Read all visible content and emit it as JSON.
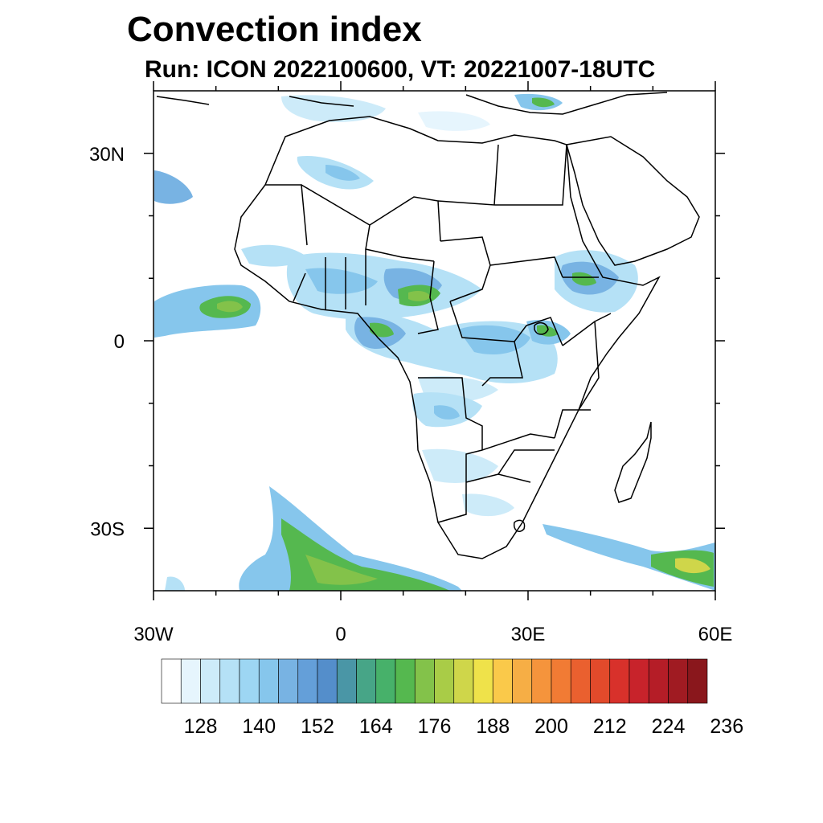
{
  "header": {
    "title": "Convection index",
    "subtitle": "Run: ICON 2022100600,  VT: 20221007-18UTC"
  },
  "map": {
    "lon_range": [
      -30,
      60
    ],
    "lat_range": [
      -40,
      40
    ],
    "lon_ticks": [
      {
        "value": -30,
        "label": "30W"
      },
      {
        "value": 0,
        "label": "0"
      },
      {
        "value": 30,
        "label": "30E"
      },
      {
        "value": 60,
        "label": "60E"
      }
    ],
    "lat_ticks": [
      {
        "value": 30,
        "label": "30N"
      },
      {
        "value": 0,
        "label": "0"
      },
      {
        "value": -30,
        "label": "30S"
      }
    ],
    "minor_lon_ticks": [
      -20,
      -10,
      10,
      20,
      40,
      50
    ],
    "minor_lat_ticks": [
      20,
      10,
      -10,
      -20
    ]
  },
  "colorbar": {
    "colors": [
      "#ffffff",
      "#e6f5fd",
      "#cdebf9",
      "#b5e1f6",
      "#9dd6f3",
      "#86c6ec",
      "#78b3e3",
      "#649fd9",
      "#548ecb",
      "#4a96a6",
      "#47a587",
      "#47b16a",
      "#55b84f",
      "#83c24a",
      "#a9cc47",
      "#cfd64a",
      "#efe24a",
      "#fac94a",
      "#f6ae45",
      "#f5943c",
      "#f17b34",
      "#ea602f",
      "#e24a2b",
      "#d8312b",
      "#c8232b",
      "#b51d27",
      "#a01b22",
      "#8a171c"
    ],
    "labels": [
      "128",
      "140",
      "152",
      "164",
      "176",
      "188",
      "200",
      "212",
      "224",
      "236"
    ]
  }
}
